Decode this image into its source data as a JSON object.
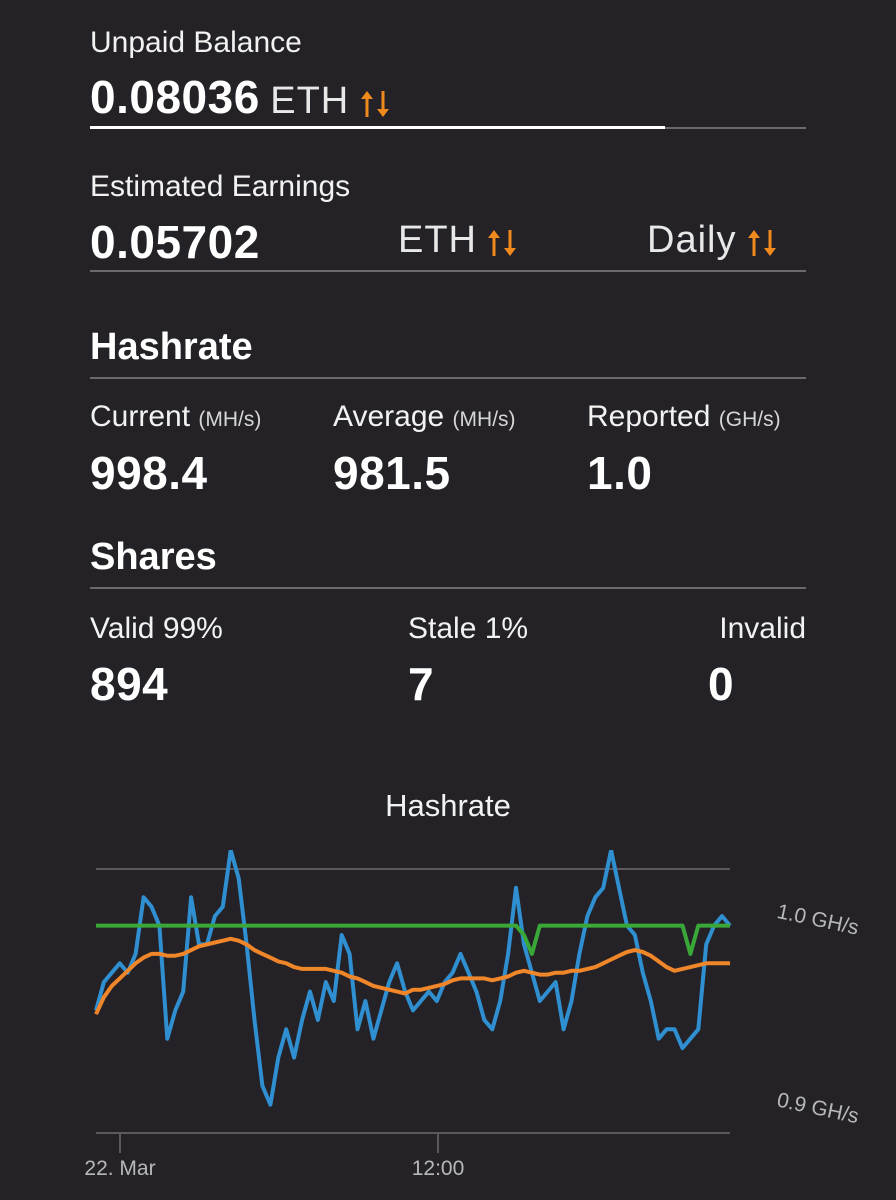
{
  "balance": {
    "label": "Unpaid Balance",
    "value": "0.08036",
    "currency": "ETH",
    "sort_icon": "sort-arrows-icon"
  },
  "earnings": {
    "label": "Estimated Earnings",
    "value": "0.05702",
    "currency": "ETH",
    "period": "Daily",
    "sort_icon": "sort-arrows-icon"
  },
  "hashrate": {
    "heading": "Hashrate",
    "current": {
      "label": "Current",
      "unit": "(MH/s)",
      "value": "998.4"
    },
    "average": {
      "label": "Average",
      "unit": "(MH/s)",
      "value": "981.5"
    },
    "reported": {
      "label": "Reported",
      "unit": "(GH/s)",
      "value": "1.0"
    }
  },
  "shares": {
    "heading": "Shares",
    "valid": {
      "label": "Valid 99%",
      "value": "894"
    },
    "stale": {
      "label": "Stale 1%",
      "value": "7"
    },
    "invalid": {
      "label": "Invalid",
      "value": "0"
    }
  },
  "colors": {
    "background": "#242226",
    "accent_orange": "#f08a1c",
    "current_line": "#2f8fd0",
    "average_line": "#f0862a",
    "reported_line": "#3aa838"
  },
  "chart_data": {
    "type": "line",
    "title": "Hashrate",
    "x_ticks": [
      "22. Mar",
      "12:00"
    ],
    "y_ticks": [
      "1.0 GH/s",
      "0.9 GH/s"
    ],
    "ylim": [
      0.89,
      1.03
    ],
    "x": [
      0,
      1,
      2,
      3,
      4,
      5,
      6,
      7,
      8,
      9,
      10,
      11,
      12,
      13,
      14,
      15,
      16,
      17,
      18,
      19,
      20,
      21,
      22,
      23,
      24,
      25,
      26,
      27,
      28,
      29,
      30,
      31,
      32,
      33,
      34,
      35,
      36,
      37,
      38,
      39,
      40,
      41,
      42,
      43,
      44,
      45,
      46,
      47,
      48,
      49,
      50,
      51,
      52,
      53,
      54,
      55,
      56,
      57,
      58,
      59,
      60,
      61,
      62,
      63,
      64,
      65,
      66,
      67,
      68,
      69,
      70,
      71,
      72,
      73,
      74,
      75,
      76,
      77,
      78,
      79,
      80
    ],
    "series": [
      {
        "values": [
          0.955,
          0.97,
          0.975,
          0.98,
          0.975,
          0.985,
          1.015,
          1.01,
          1.0,
          0.94,
          0.955,
          0.965,
          1.015,
          0.99,
          0.99,
          1.005,
          1.01,
          1.04,
          1.025,
          0.99,
          0.95,
          0.915,
          0.905,
          0.93,
          0.945,
          0.93,
          0.95,
          0.965,
          0.95,
          0.97,
          0.96,
          0.995,
          0.985,
          0.945,
          0.96,
          0.94,
          0.955,
          0.97,
          0.98,
          0.965,
          0.955,
          0.96,
          0.965,
          0.96,
          0.97,
          0.975,
          0.985,
          0.975,
          0.965,
          0.95,
          0.945,
          0.96,
          0.985,
          1.02,
          0.99,
          0.975,
          0.96,
          0.965,
          0.97,
          0.945,
          0.96,
          0.985,
          1.005,
          1.015,
          1.02,
          1.04,
          1.02,
          1.0,
          0.995,
          0.975,
          0.96,
          0.94,
          0.945,
          0.945,
          0.935,
          0.94,
          0.945,
          0.99,
          1.0,
          1.005,
          1.0
        ]
      },
      {
        "values": [
          0.953,
          0.962,
          0.968,
          0.972,
          0.976,
          0.98,
          0.983,
          0.985,
          0.985,
          0.984,
          0.984,
          0.985,
          0.987,
          0.989,
          0.99,
          0.991,
          0.992,
          0.993,
          0.992,
          0.99,
          0.987,
          0.985,
          0.983,
          0.981,
          0.98,
          0.978,
          0.977,
          0.977,
          0.977,
          0.977,
          0.976,
          0.975,
          0.973,
          0.972,
          0.97,
          0.968,
          0.967,
          0.966,
          0.965,
          0.964,
          0.966,
          0.966,
          0.967,
          0.968,
          0.969,
          0.971,
          0.972,
          0.972,
          0.972,
          0.972,
          0.971,
          0.972,
          0.973,
          0.975,
          0.976,
          0.975,
          0.974,
          0.974,
          0.975,
          0.975,
          0.976,
          0.976,
          0.977,
          0.978,
          0.98,
          0.982,
          0.984,
          0.986,
          0.987,
          0.986,
          0.984,
          0.981,
          0.978,
          0.976,
          0.977,
          0.978,
          0.979,
          0.98,
          0.98,
          0.98,
          0.98
        ]
      },
      {
        "values": [
          1.0,
          1.0,
          1.0,
          1.0,
          1.0,
          1.0,
          1.0,
          1.0,
          1.0,
          1.0,
          1.0,
          1.0,
          1.0,
          1.0,
          1.0,
          1.0,
          1.0,
          1.0,
          1.0,
          1.0,
          1.0,
          1.0,
          1.0,
          1.0,
          1.0,
          1.0,
          1.0,
          1.0,
          1.0,
          1.0,
          1.0,
          1.0,
          1.0,
          1.0,
          1.0,
          1.0,
          1.0,
          1.0,
          1.0,
          1.0,
          1.0,
          1.0,
          1.0,
          1.0,
          1.0,
          1.0,
          1.0,
          1.0,
          1.0,
          1.0,
          1.0,
          1.0,
          1.0,
          1.0,
          0.995,
          0.985,
          1.0,
          1.0,
          1.0,
          1.0,
          1.0,
          1.0,
          1.0,
          1.0,
          1.0,
          1.0,
          1.0,
          1.0,
          1.0,
          1.0,
          1.0,
          1.0,
          1.0,
          1.0,
          1.0,
          0.985,
          1.0,
          1.0,
          1.0,
          1.0,
          1.0
        ]
      }
    ],
    "grid": false,
    "legend": "none"
  }
}
